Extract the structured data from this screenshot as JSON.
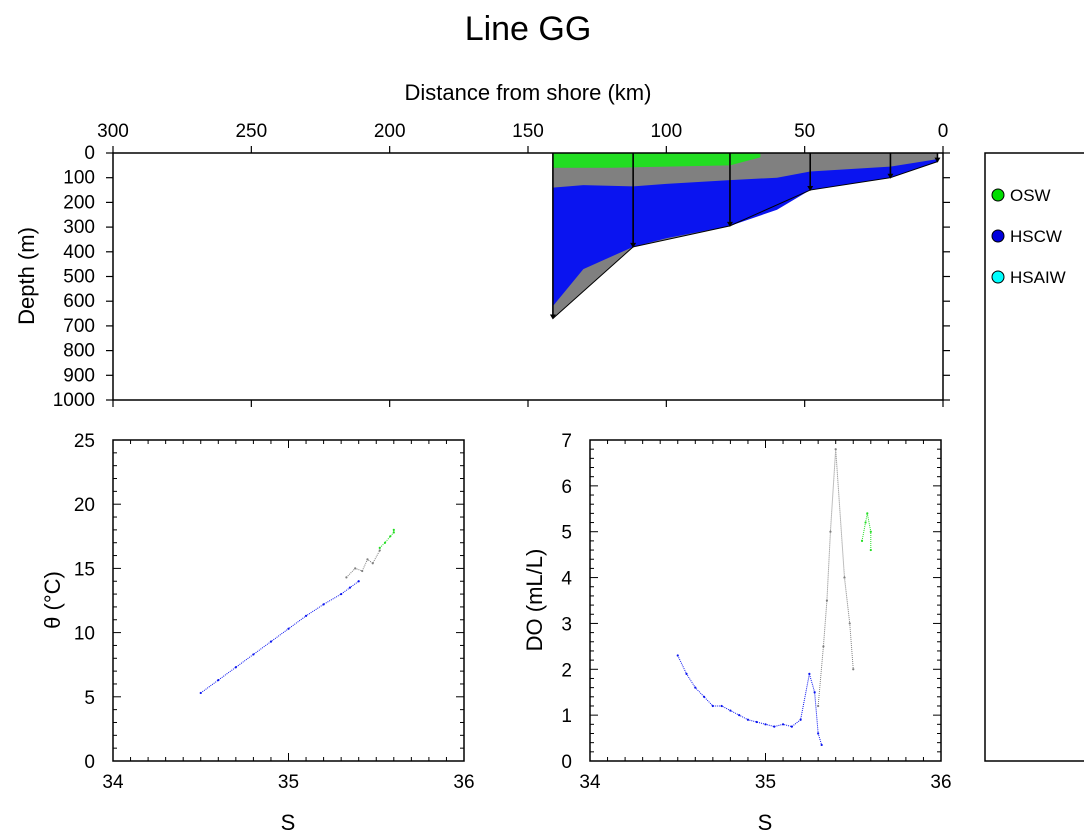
{
  "figure": {
    "title": "Line GG",
    "legend": {
      "placement": "right",
      "items": [
        {
          "label": "OSW",
          "color": "#00dd00"
        },
        {
          "label": "HSCW",
          "color": "#0000dd"
        },
        {
          "label": "HSAIW",
          "color": "#00ffff"
        }
      ]
    }
  },
  "colors": {
    "OSW": "#22dd22",
    "HSCW": "#0a14f0",
    "other": "#808080",
    "station": "#000000"
  },
  "chart_data": [
    {
      "type": "area",
      "name": "section",
      "xlabel": "Distance from shore (km)",
      "ylabel": "Depth (m)",
      "xlim": [
        300,
        0
      ],
      "ylim": [
        0,
        1000
      ],
      "xticks": [
        "300",
        "250",
        "200",
        "150",
        "100",
        "50",
        "0"
      ],
      "yticks": [
        "0",
        "100",
        "200",
        "300",
        "400",
        "500",
        "600",
        "700",
        "800",
        "900",
        "1000"
      ],
      "bottom_profile": [
        [
          141,
          670
        ],
        [
          112,
          380
        ],
        [
          77,
          295
        ],
        [
          48,
          150
        ],
        [
          19,
          100
        ],
        [
          2,
          35
        ]
      ],
      "stations": [
        [
          141,
          670
        ],
        [
          112,
          380
        ],
        [
          77,
          295
        ],
        [
          48,
          150
        ],
        [
          19,
          100
        ],
        [
          2,
          35
        ]
      ],
      "layers": [
        {
          "name": "OSW",
          "x": [
            141,
            112,
            77,
            66
          ],
          "top": [
            0,
            0,
            0,
            0
          ],
          "bottom": [
            60,
            60,
            55,
            50
          ]
        },
        {
          "name": "other",
          "x": [
            141,
            120,
            100,
            77,
            60,
            48,
            19,
            2
          ],
          "top": [
            60,
            60,
            55,
            50,
            0,
            0,
            0,
            0
          ],
          "bottom": [
            140,
            135,
            120,
            110,
            95,
            75,
            55,
            25
          ]
        },
        {
          "name": "HSCW",
          "x": [
            141,
            130,
            112,
            100,
            77,
            60,
            48,
            19,
            2
          ],
          "top": [
            140,
            130,
            135,
            125,
            110,
            100,
            75,
            55,
            25
          ],
          "bottom": [
            620,
            470,
            380,
            345,
            295,
            230,
            150,
            100,
            35
          ]
        }
      ]
    },
    {
      "type": "scatter",
      "name": "theta-s",
      "xlabel": "S",
      "ylabel": "θ (°C)",
      "xlim": [
        34,
        36
      ],
      "ylim": [
        0,
        25
      ],
      "xticks": [
        "34",
        "35",
        "36"
      ],
      "yticks": [
        "0",
        "5",
        "10",
        "15",
        "20",
        "25"
      ],
      "series": [
        {
          "name": "HSCW",
          "x": [
            34.5,
            34.6,
            34.7,
            34.8,
            34.9,
            35.0,
            35.1,
            35.2,
            35.3,
            35.35,
            35.4
          ],
          "y": [
            5.3,
            6.3,
            7.3,
            8.3,
            9.3,
            10.3,
            11.3,
            12.2,
            13.0,
            13.5,
            14.0
          ]
        },
        {
          "name": "other",
          "x": [
            35.33,
            35.38,
            35.42,
            35.45,
            35.48,
            35.52
          ],
          "y": [
            14.3,
            15.0,
            14.8,
            15.7,
            15.4,
            16.4
          ]
        },
        {
          "name": "OSW",
          "x": [
            35.52,
            35.55,
            35.58,
            35.6,
            35.6
          ],
          "y": [
            16.6,
            17.0,
            17.5,
            17.8,
            18.0
          ]
        }
      ]
    },
    {
      "type": "scatter",
      "name": "do-s",
      "xlabel": "S",
      "ylabel": "DO (mL/L)",
      "xlim": [
        34,
        36
      ],
      "ylim": [
        0,
        7
      ],
      "xticks": [
        "34",
        "35",
        "36"
      ],
      "yticks": [
        "0",
        "1",
        "2",
        "3",
        "4",
        "5",
        "6",
        "7"
      ],
      "series": [
        {
          "name": "HSCW",
          "x": [
            34.5,
            34.55,
            34.6,
            34.65,
            34.7,
            34.75,
            34.8,
            34.85,
            34.9,
            34.95,
            35.0,
            35.05,
            35.1,
            35.15,
            35.2,
            35.25,
            35.28,
            35.3,
            35.32
          ],
          "y": [
            2.3,
            1.9,
            1.6,
            1.4,
            1.2,
            1.2,
            1.1,
            1.0,
            0.9,
            0.85,
            0.8,
            0.75,
            0.8,
            0.75,
            0.9,
            1.9,
            1.5,
            0.6,
            0.35
          ]
        },
        {
          "name": "other",
          "x": [
            35.3,
            35.33,
            35.35,
            35.37,
            35.4,
            35.45,
            35.48,
            35.5
          ],
          "y": [
            1.2,
            2.5,
            3.5,
            5.0,
            6.8,
            4.0,
            3.0,
            2.0
          ]
        },
        {
          "name": "OSW",
          "x": [
            35.55,
            35.57,
            35.58,
            35.6,
            35.6
          ],
          "y": [
            4.8,
            5.2,
            5.4,
            5.0,
            4.6
          ]
        }
      ]
    }
  ]
}
